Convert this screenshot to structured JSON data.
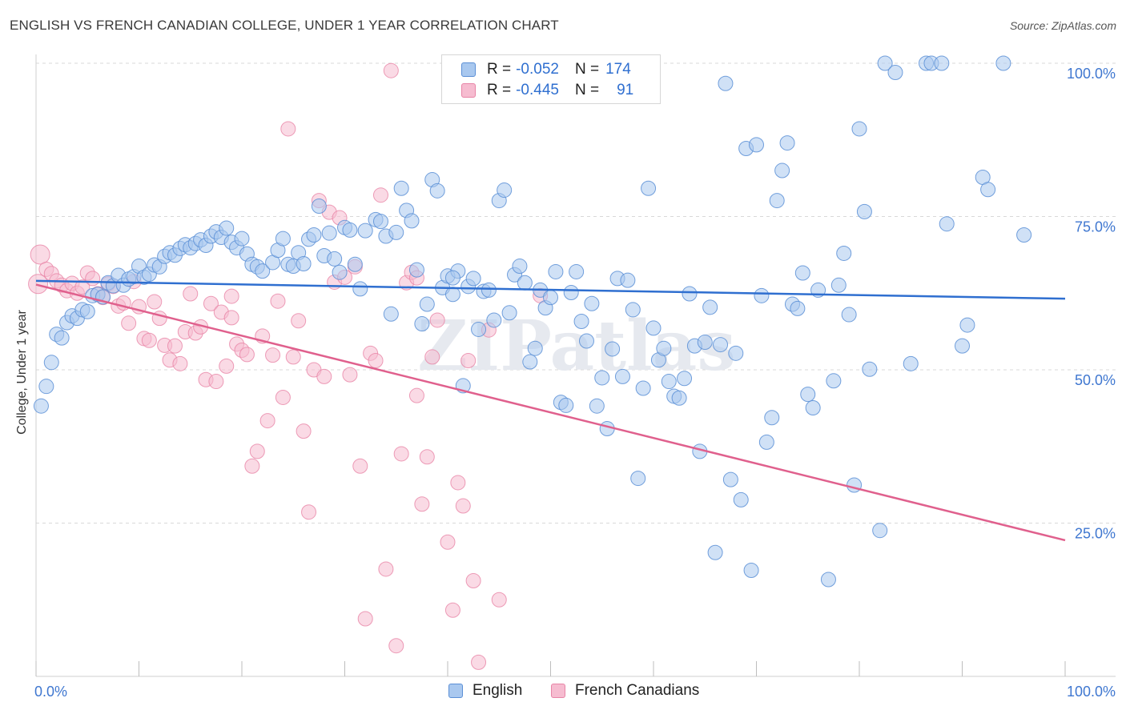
{
  "header": {
    "title": "ENGLISH VS FRENCH CANADIAN COLLEGE, UNDER 1 YEAR CORRELATION CHART",
    "source": "Source: ZipAtlas.com"
  },
  "legend_top": {
    "rows": [
      {
        "r_label": "R =",
        "r_value": "-0.052",
        "n_label": "N =",
        "n_value": "174"
      },
      {
        "r_label": "R =",
        "r_value": "-0.445",
        "n_label": "N =",
        "n_value": "91"
      }
    ]
  },
  "legend_bottom": {
    "english": "English",
    "french": "French Canadians"
  },
  "colors": {
    "english_fill": "#a9c8ef",
    "english_stroke": "#5b8fd6",
    "english_line": "#2f6fd0",
    "french_fill": "#f6bcd0",
    "french_stroke": "#e884a6",
    "french_line": "#e0608d",
    "tick_text": "#3f77d0",
    "grid": "#d9d9d9"
  },
  "chart_data": {
    "type": "scatter",
    "title": "ENGLISH VS FRENCH CANADIAN COLLEGE, UNDER 1 YEAR CORRELATION CHART",
    "xlabel": "",
    "ylabel": "College, Under 1 year",
    "xlim": [
      0,
      100
    ],
    "ylim": [
      0,
      102
    ],
    "x_tick_labels": [
      "0.0%",
      "100.0%"
    ],
    "y_ticks": [
      25,
      50,
      75,
      100
    ],
    "y_tick_labels": [
      "25.0%",
      "50.0%",
      "75.0%",
      "100.0%"
    ],
    "grid": true,
    "watermark": "ZIPatlas",
    "series": [
      {
        "name": "English",
        "R": -0.052,
        "N": 174,
        "trend": {
          "x": [
            0,
            100
          ],
          "y": [
            64.5,
            61.6
          ]
        },
        "points": [
          [
            0.5,
            44.1
          ],
          [
            1,
            47.3
          ],
          [
            1.5,
            51.2
          ],
          [
            2,
            55.8
          ],
          [
            2.5,
            55.2
          ],
          [
            3,
            57.7
          ],
          [
            3.5,
            58.8
          ],
          [
            4,
            58.4
          ],
          [
            4.5,
            59.8
          ],
          [
            5,
            59.5
          ],
          [
            5.5,
            62.1
          ],
          [
            6,
            62.3
          ],
          [
            6.5,
            61.9
          ],
          [
            7,
            64.2
          ],
          [
            7.5,
            63.7
          ],
          [
            8,
            65.4
          ],
          [
            8.5,
            63.8
          ],
          [
            9,
            64.8
          ],
          [
            9.5,
            65.2
          ],
          [
            10,
            66.9
          ],
          [
            10.5,
            65.1
          ],
          [
            11,
            65.6
          ],
          [
            11.5,
            67.1
          ],
          [
            12,
            66.8
          ],
          [
            12.5,
            68.5
          ],
          [
            13,
            69.1
          ],
          [
            13.5,
            68.7
          ],
          [
            14,
            69.8
          ],
          [
            14.5,
            70.4
          ],
          [
            15,
            69.9
          ],
          [
            15.5,
            70.6
          ],
          [
            16,
            71.2
          ],
          [
            16.5,
            70.3
          ],
          [
            17,
            71.8
          ],
          [
            17.5,
            72.5
          ],
          [
            18,
            71.6
          ],
          [
            18.5,
            73.1
          ],
          [
            19,
            70.8
          ],
          [
            19.5,
            69.9
          ],
          [
            20,
            71.4
          ],
          [
            20.5,
            68.9
          ],
          [
            21,
            67.2
          ],
          [
            21.5,
            66.8
          ],
          [
            22,
            66.1
          ],
          [
            23,
            67.5
          ],
          [
            23.5,
            69.5
          ],
          [
            24,
            71.4
          ],
          [
            24.5,
            67.2
          ],
          [
            25,
            66.9
          ],
          [
            25.5,
            69.1
          ],
          [
            26,
            67.3
          ],
          [
            26.5,
            71.3
          ],
          [
            27,
            72.0
          ],
          [
            27.5,
            76.7
          ],
          [
            28,
            68.6
          ],
          [
            28.5,
            72.3
          ],
          [
            29,
            68.1
          ],
          [
            29.5,
            65.9
          ],
          [
            30,
            73.2
          ],
          [
            30.5,
            72.8
          ],
          [
            31,
            67.2
          ],
          [
            31.5,
            63.2
          ],
          [
            32,
            72.7
          ],
          [
            33,
            74.5
          ],
          [
            33.5,
            74.2
          ],
          [
            34,
            71.8
          ],
          [
            34.5,
            59.1
          ],
          [
            35,
            72.4
          ],
          [
            35.5,
            79.6
          ],
          [
            36,
            76.0
          ],
          [
            36.5,
            74.3
          ],
          [
            37,
            66.3
          ],
          [
            37.5,
            57.5
          ],
          [
            38,
            60.7
          ],
          [
            38.5,
            81.0
          ],
          [
            39,
            79.2
          ],
          [
            39.5,
            63.4
          ],
          [
            40,
            65.3
          ],
          [
            40.5,
            62.3
          ],
          [
            41,
            66.1
          ],
          [
            41.5,
            47.4
          ],
          [
            42,
            63.6
          ],
          [
            42.5,
            64.9
          ],
          [
            43,
            56.6
          ],
          [
            43.5,
            62.8
          ],
          [
            44,
            63.0
          ],
          [
            44.5,
            58.1
          ],
          [
            45,
            77.6
          ],
          [
            45.5,
            79.3
          ],
          [
            46,
            59.3
          ],
          [
            46.5,
            65.5
          ],
          [
            47,
            66.9
          ],
          [
            47.5,
            64.2
          ],
          [
            48,
            51.3
          ],
          [
            48.5,
            53.5
          ],
          [
            49,
            63.0
          ],
          [
            49.5,
            60.1
          ],
          [
            50,
            61.8
          ],
          [
            50.5,
            66.0
          ],
          [
            51,
            44.7
          ],
          [
            51.5,
            44.2
          ],
          [
            52,
            62.6
          ],
          [
            52.5,
            66.0
          ],
          [
            53,
            57.9
          ],
          [
            53.5,
            54.7
          ],
          [
            54,
            60.8
          ],
          [
            54.5,
            44.1
          ],
          [
            55,
            48.7
          ],
          [
            55.5,
            40.4
          ],
          [
            56,
            53.4
          ],
          [
            56.5,
            64.9
          ],
          [
            57,
            48.9
          ],
          [
            57.5,
            64.6
          ],
          [
            58,
            59.8
          ],
          [
            58.5,
            32.3
          ],
          [
            59,
            47.0
          ],
          [
            59.5,
            79.6
          ],
          [
            60,
            56.8
          ],
          [
            60.5,
            51.6
          ],
          [
            61,
            53.5
          ],
          [
            61.5,
            48.1
          ],
          [
            62,
            45.7
          ],
          [
            62.5,
            45.4
          ],
          [
            63,
            48.6
          ],
          [
            63.5,
            62.4
          ],
          [
            64,
            53.9
          ],
          [
            64.5,
            36.7
          ],
          [
            65,
            54.5
          ],
          [
            65.5,
            60.2
          ],
          [
            66,
            20.2
          ],
          [
            66.5,
            54.1
          ],
          [
            67,
            96.7
          ],
          [
            67.5,
            32.1
          ],
          [
            68,
            52.7
          ],
          [
            68.5,
            28.8
          ],
          [
            69,
            86.1
          ],
          [
            69.5,
            17.3
          ],
          [
            70,
            86.7
          ],
          [
            70.5,
            62.1
          ],
          [
            71,
            38.2
          ],
          [
            71.5,
            42.2
          ],
          [
            72,
            77.6
          ],
          [
            72.5,
            82.5
          ],
          [
            73,
            87.0
          ],
          [
            73.5,
            60.7
          ],
          [
            74,
            60.0
          ],
          [
            74.5,
            65.8
          ],
          [
            75,
            46.0
          ],
          [
            75.5,
            43.8
          ],
          [
            76,
            63.0
          ],
          [
            77,
            15.8
          ],
          [
            77.5,
            48.2
          ],
          [
            78,
            63.8
          ],
          [
            78.5,
            69.0
          ],
          [
            79,
            59.0
          ],
          [
            79.5,
            31.2
          ],
          [
            80,
            89.3
          ],
          [
            80.5,
            75.8
          ],
          [
            81,
            50.1
          ],
          [
            82,
            23.8
          ],
          [
            82.5,
            100
          ],
          [
            83.5,
            98.5
          ],
          [
            85,
            51.0
          ],
          [
            86.5,
            100
          ],
          [
            87,
            100
          ],
          [
            88,
            100
          ],
          [
            88.5,
            73.8
          ],
          [
            90,
            53.9
          ],
          [
            90.5,
            57.3
          ],
          [
            92,
            81.4
          ],
          [
            92.5,
            79.4
          ],
          [
            94,
            100
          ],
          [
            96,
            72.0
          ],
          [
            40.5,
            65.0
          ]
        ]
      },
      {
        "name": "French Canadians",
        "R": -0.445,
        "N": 91,
        "trend": {
          "x": [
            0,
            100
          ],
          "y": [
            63.9,
            22.2
          ]
        },
        "points": [
          [
            0.2,
            64.0
          ],
          [
            0.4,
            68.8
          ],
          [
            1,
            66.4
          ],
          [
            1.5,
            65.7
          ],
          [
            2,
            64.5
          ],
          [
            2.5,
            63.8
          ],
          [
            3,
            62.9
          ],
          [
            3.5,
            64.1
          ],
          [
            4,
            62.5
          ],
          [
            4.5,
            63.5
          ],
          [
            5,
            65.8
          ],
          [
            5.5,
            64.9
          ],
          [
            6,
            62.4
          ],
          [
            6.5,
            61.8
          ],
          [
            7,
            64.0
          ],
          [
            7.5,
            63.6
          ],
          [
            8,
            60.4
          ],
          [
            8.5,
            60.9
          ],
          [
            9,
            57.6
          ],
          [
            9.5,
            64.4
          ],
          [
            10,
            60.3
          ],
          [
            10.5,
            55.1
          ],
          [
            11,
            54.8
          ],
          [
            11.5,
            61.1
          ],
          [
            12,
            58.4
          ],
          [
            12.5,
            54.0
          ],
          [
            13,
            51.6
          ],
          [
            13.5,
            53.9
          ],
          [
            14,
            51.0
          ],
          [
            14.5,
            56.2
          ],
          [
            15,
            62.4
          ],
          [
            15.5,
            56.0
          ],
          [
            16,
            57.0
          ],
          [
            16.5,
            48.4
          ],
          [
            17,
            60.8
          ],
          [
            17.5,
            48.1
          ],
          [
            18,
            59.4
          ],
          [
            18.5,
            50.6
          ],
          [
            19,
            58.5
          ],
          [
            19.5,
            54.2
          ],
          [
            20,
            53.2
          ],
          [
            20.5,
            52.5
          ],
          [
            21,
            34.3
          ],
          [
            21.5,
            36.7
          ],
          [
            22,
            55.5
          ],
          [
            22.5,
            41.7
          ],
          [
            23,
            52.4
          ],
          [
            23.5,
            61.2
          ],
          [
            24,
            45.5
          ],
          [
            24.5,
            89.3
          ],
          [
            25,
            52.1
          ],
          [
            25.5,
            58.0
          ],
          [
            26,
            40.0
          ],
          [
            26.5,
            26.8
          ],
          [
            27,
            50.0
          ],
          [
            27.5,
            77.6
          ],
          [
            28,
            48.9
          ],
          [
            28.5,
            75.7
          ],
          [
            29,
            64.3
          ],
          [
            29.5,
            74.8
          ],
          [
            30,
            65.1
          ],
          [
            30.5,
            49.2
          ],
          [
            31,
            66.8
          ],
          [
            31.5,
            34.3
          ],
          [
            32,
            9.4
          ],
          [
            32.5,
            52.7
          ],
          [
            33,
            51.5
          ],
          [
            33.5,
            78.5
          ],
          [
            34,
            17.5
          ],
          [
            34.5,
            98.8
          ],
          [
            35,
            5.0
          ],
          [
            35.5,
            36.3
          ],
          [
            36,
            64.2
          ],
          [
            36.5,
            65.9
          ],
          [
            37,
            45.8
          ],
          [
            37.5,
            28.1
          ],
          [
            38,
            35.8
          ],
          [
            38.5,
            52.1
          ],
          [
            39,
            58.1
          ],
          [
            40,
            21.9
          ],
          [
            40.5,
            10.8
          ],
          [
            41,
            31.6
          ],
          [
            41.5,
            27.8
          ],
          [
            42,
            51.5
          ],
          [
            42.5,
            15.6
          ],
          [
            43,
            2.3
          ],
          [
            44,
            56.5
          ],
          [
            45,
            12.5
          ],
          [
            49,
            62.1
          ],
          [
            37,
            65.0
          ],
          [
            19,
            62.0
          ]
        ]
      }
    ]
  }
}
